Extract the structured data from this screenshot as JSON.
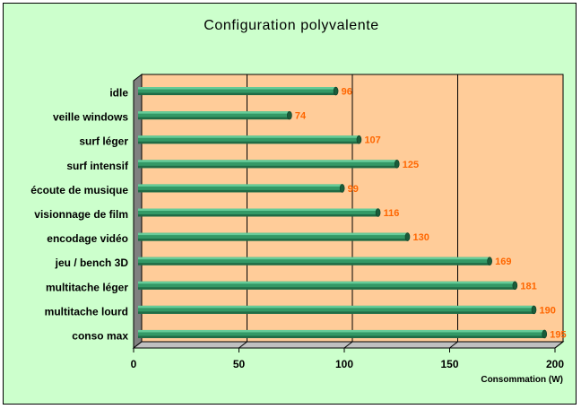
{
  "chart_data": {
    "type": "bar",
    "orientation": "horizontal",
    "title": "Configuration polyvalente",
    "xlabel": "Consommation (W)",
    "ylabel": "",
    "categories": [
      "idle",
      "veille windows",
      "surf léger",
      "surf intensif",
      "écoute de musique",
      "visionnage de film",
      "encodage vidéo",
      "jeu / bench 3D",
      "multitache léger",
      "multitache lourd",
      "conso max"
    ],
    "values": [
      96,
      74,
      107,
      125,
      99,
      116,
      130,
      169,
      181,
      190,
      195
    ],
    "xlim": [
      0,
      200
    ],
    "xticks": [
      "0",
      "50",
      "100",
      "150",
      "200"
    ],
    "grid": true,
    "legend": "none",
    "colors": {
      "background": "#ccffcc",
      "plot_area": "#ffcc99",
      "bar": "#339966",
      "value_label": "#ff6600"
    }
  }
}
